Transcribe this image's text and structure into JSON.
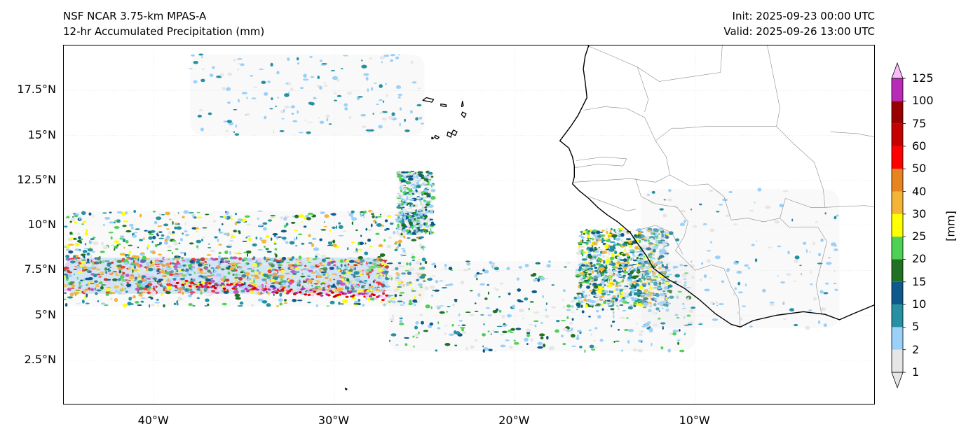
{
  "title": {
    "model": "NSF NCAR 3.75-km MPAS-A",
    "field": "12-hr Accumulated Precipitation (mm)",
    "init": "Init: 2025-09-23 00:00 UTC",
    "valid": "Valid: 2025-09-26 13:00 UTC"
  },
  "map": {
    "lon_range": [
      -45,
      0
    ],
    "lat_range": [
      0,
      20
    ],
    "lat_ticks": [
      {
        "value": 17.5,
        "label": "17.5°N"
      },
      {
        "value": 15,
        "label": "15°N"
      },
      {
        "value": 12.5,
        "label": "12.5°N"
      },
      {
        "value": 10,
        "label": "10°N"
      },
      {
        "value": 7.5,
        "label": "7.5°N"
      },
      {
        "value": 5,
        "label": "5°N"
      },
      {
        "value": 2.5,
        "label": "2.5°N"
      }
    ],
    "lon_ticks": [
      {
        "value": -40,
        "label": "40°W"
      },
      {
        "value": -30,
        "label": "30°W"
      },
      {
        "value": -20,
        "label": "20°W"
      },
      {
        "value": -10,
        "label": "10°W"
      }
    ],
    "coastline": [
      [
        -15.9,
        20
      ],
      [
        -16.1,
        19.4
      ],
      [
        -16.2,
        18.7
      ],
      [
        -16.1,
        18.0
      ],
      [
        -16.0,
        17.1
      ],
      [
        -16.5,
        16.1
      ],
      [
        -16.9,
        15.5
      ],
      [
        -17.5,
        14.7
      ],
      [
        -17.0,
        14.3
      ],
      [
        -16.8,
        13.8
      ],
      [
        -16.7,
        13.3
      ],
      [
        -16.7,
        12.7
      ],
      [
        -16.8,
        12.3
      ],
      [
        -16.4,
        11.9
      ],
      [
        -15.9,
        11.5
      ],
      [
        -15.4,
        11.0
      ],
      [
        -14.9,
        10.6
      ],
      [
        -14.3,
        10.2
      ],
      [
        -13.6,
        9.6
      ],
      [
        -13.2,
        9.0
      ],
      [
        -12.7,
        8.3
      ],
      [
        -12.3,
        7.6
      ],
      [
        -11.5,
        7.0
      ],
      [
        -10.6,
        6.5
      ],
      [
        -9.8,
        5.9
      ],
      [
        -8.9,
        5.1
      ],
      [
        -8.0,
        4.5
      ],
      [
        -7.5,
        4.35
      ],
      [
        -6.8,
        4.7
      ],
      [
        -5.5,
        5.0
      ],
      [
        -4.0,
        5.2
      ],
      [
        -2.8,
        5.05
      ],
      [
        -2.0,
        4.75
      ],
      [
        -1.2,
        5.1
      ],
      [
        0,
        5.6
      ]
    ],
    "borders": [
      [
        [
          -16.2,
          16.4
        ],
        [
          -15.0,
          16.6
        ],
        [
          -13.8,
          16.5
        ],
        [
          -12.8,
          16.0
        ],
        [
          -12.2,
          14.7
        ]
      ],
      [
        [
          -12.2,
          14.7
        ],
        [
          -11.6,
          13.8
        ],
        [
          -11.4,
          12.8
        ],
        [
          -12.2,
          12.4
        ],
        [
          -13.6,
          12.6
        ],
        [
          -16.7,
          12.4
        ]
      ],
      [
        [
          -16.7,
          13.2
        ],
        [
          -15.4,
          13.4
        ],
        [
          -14.0,
          13.3
        ],
        [
          -13.8,
          13.7
        ],
        [
          -15.1,
          13.8
        ],
        [
          -16.6,
          13.6
        ]
      ],
      [
        [
          -15.9,
          11.6
        ],
        [
          -14.8,
          11.2
        ],
        [
          -13.8,
          10.8
        ],
        [
          -13.3,
          10.9
        ]
      ],
      [
        [
          -13.3,
          12.6
        ],
        [
          -13.0,
          11.6
        ],
        [
          -12.2,
          11.2
        ],
        [
          -11.0,
          11.0
        ],
        [
          -10.4,
          10.2
        ],
        [
          -10.6,
          9.4
        ],
        [
          -11.1,
          8.6
        ],
        [
          -10.6,
          8.1
        ],
        [
          -10.0,
          7.5
        ],
        [
          -9.1,
          7.8
        ],
        [
          -8.4,
          7.6
        ],
        [
          -8.0,
          6.6
        ],
        [
          -7.6,
          5.9
        ],
        [
          -7.5,
          4.35
        ]
      ],
      [
        [
          -13.3,
          9.7
        ],
        [
          -12.2,
          10.0
        ],
        [
          -11.3,
          9.6
        ],
        [
          -10.7,
          8.4
        ]
      ],
      [
        [
          -11.4,
          12.8
        ],
        [
          -10.3,
          12.2
        ],
        [
          -9.3,
          12.3
        ],
        [
          -8.4,
          11.6
        ],
        [
          -8.0,
          10.3
        ],
        [
          -7.1,
          10.4
        ],
        [
          -6.2,
          10.2
        ],
        [
          -5.3,
          10.4
        ]
      ],
      [
        [
          -5.3,
          10.4
        ],
        [
          -4.8,
          9.9
        ],
        [
          -3.2,
          9.9
        ],
        [
          -2.7,
          9.1
        ],
        [
          -3.0,
          7.9
        ],
        [
          -3.3,
          6.7
        ],
        [
          -3.0,
          5.1
        ]
      ],
      [
        [
          -5.3,
          10.4
        ],
        [
          -5.0,
          11.5
        ],
        [
          -3.6,
          11.0
        ],
        [
          -2.8,
          11.0
        ],
        [
          -0.6,
          11.1
        ],
        [
          0,
          11.0
        ]
      ],
      [
        [
          -2.8,
          11.0
        ],
        [
          -2.9,
          12.0
        ],
        [
          -3.4,
          13.5
        ],
        [
          -4.5,
          14.5
        ],
        [
          -5.5,
          15.5
        ],
        [
          -5.3,
          16.5
        ],
        [
          -6.0,
          20
        ]
      ],
      [
        [
          -12.2,
          14.7
        ],
        [
          -11.3,
          15.4
        ],
        [
          -10.7,
          15.4
        ],
        [
          -9.4,
          15.5
        ],
        [
          -5.5,
          15.5
        ]
      ],
      [
        [
          -2.5,
          15.2
        ],
        [
          -1.0,
          15.1
        ],
        [
          0,
          14.9
        ]
      ],
      [
        [
          -8.5,
          20
        ],
        [
          -8.6,
          18.5
        ],
        [
          -12.0,
          18.0
        ],
        [
          -13.2,
          18.8
        ],
        [
          -14.8,
          19.5
        ],
        [
          -16.0,
          20
        ]
      ],
      [
        [
          -13.2,
          18.8
        ],
        [
          -12.6,
          17.0
        ],
        [
          -12.8,
          16.3
        ]
      ]
    ],
    "islands": [
      [
        [
          -24.9,
          17.1
        ],
        [
          -24.5,
          17.0
        ],
        [
          -24.6,
          16.85
        ],
        [
          -25.1,
          16.95
        ]
      ],
      [
        [
          -24.1,
          16.75
        ],
        [
          -23.8,
          16.7
        ],
        [
          -23.8,
          16.6
        ],
        [
          -24.1,
          16.65
        ]
      ],
      [
        [
          -22.9,
          16.9
        ],
        [
          -22.85,
          16.65
        ],
        [
          -22.95,
          16.6
        ]
      ],
      [
        [
          -22.9,
          16.3
        ],
        [
          -22.7,
          16.2
        ],
        [
          -22.8,
          16.0
        ],
        [
          -22.95,
          16.15
        ]
      ],
      [
        [
          -23.4,
          15.3
        ],
        [
          -23.2,
          15.2
        ],
        [
          -23.3,
          15.0
        ],
        [
          -23.5,
          15.1
        ]
      ],
      [
        [
          -24.4,
          15.0
        ],
        [
          -24.2,
          14.9
        ],
        [
          -24.3,
          14.8
        ],
        [
          -24.45,
          14.9
        ]
      ],
      [
        [
          -23.7,
          15.2
        ],
        [
          -23.5,
          15.1
        ],
        [
          -23.55,
          14.9
        ],
        [
          -23.75,
          15.0
        ]
      ],
      [
        [
          -24.6,
          14.9
        ],
        [
          -24.5,
          14.85
        ],
        [
          -24.6,
          14.8
        ]
      ],
      [
        [
          -29.4,
          0.95
        ],
        [
          -29.3,
          0.9
        ],
        [
          -29.35,
          0.85
        ]
      ]
    ],
    "precip_bands": [
      {
        "lon": [
          -45,
          -27
        ],
        "lat": [
          6.2,
          8.2
        ],
        "density": "high"
      },
      {
        "lon": [
          -45,
          -25
        ],
        "lat": [
          5.5,
          10.8
        ],
        "density": "medium"
      },
      {
        "lon": [
          -27,
          -10
        ],
        "lat": [
          3.0,
          8.0
        ],
        "density": "low"
      },
      {
        "lon": [
          -16.5,
          -11.5
        ],
        "lat": [
          5.5,
          9.8
        ],
        "density": "medium"
      },
      {
        "lon": [
          -26.5,
          -24.5
        ],
        "lat": [
          9.5,
          13.0
        ],
        "density": "low"
      },
      {
        "lon": [
          -38,
          -25
        ],
        "lat": [
          15.0,
          19.5
        ],
        "density": "sparse"
      },
      {
        "lon": [
          -13,
          -2
        ],
        "lat": [
          4.3,
          12.0
        ],
        "density": "sparse"
      }
    ]
  },
  "colorbar": {
    "units": "[mm]",
    "levels": [
      "1",
      "2",
      "5",
      "10",
      "15",
      "20",
      "25",
      "30",
      "40",
      "50",
      "60",
      "75",
      "100",
      "125"
    ],
    "colors": [
      "#e6e6e6",
      "#9bd0f8",
      "#2791a3",
      "#0f5a8a",
      "#217125",
      "#4fd155",
      "#ffff00",
      "#f4b437",
      "#e88420",
      "#ff0000",
      "#c40000",
      "#9b0000",
      "#b82ab8",
      "#f8bdf8"
    ]
  }
}
